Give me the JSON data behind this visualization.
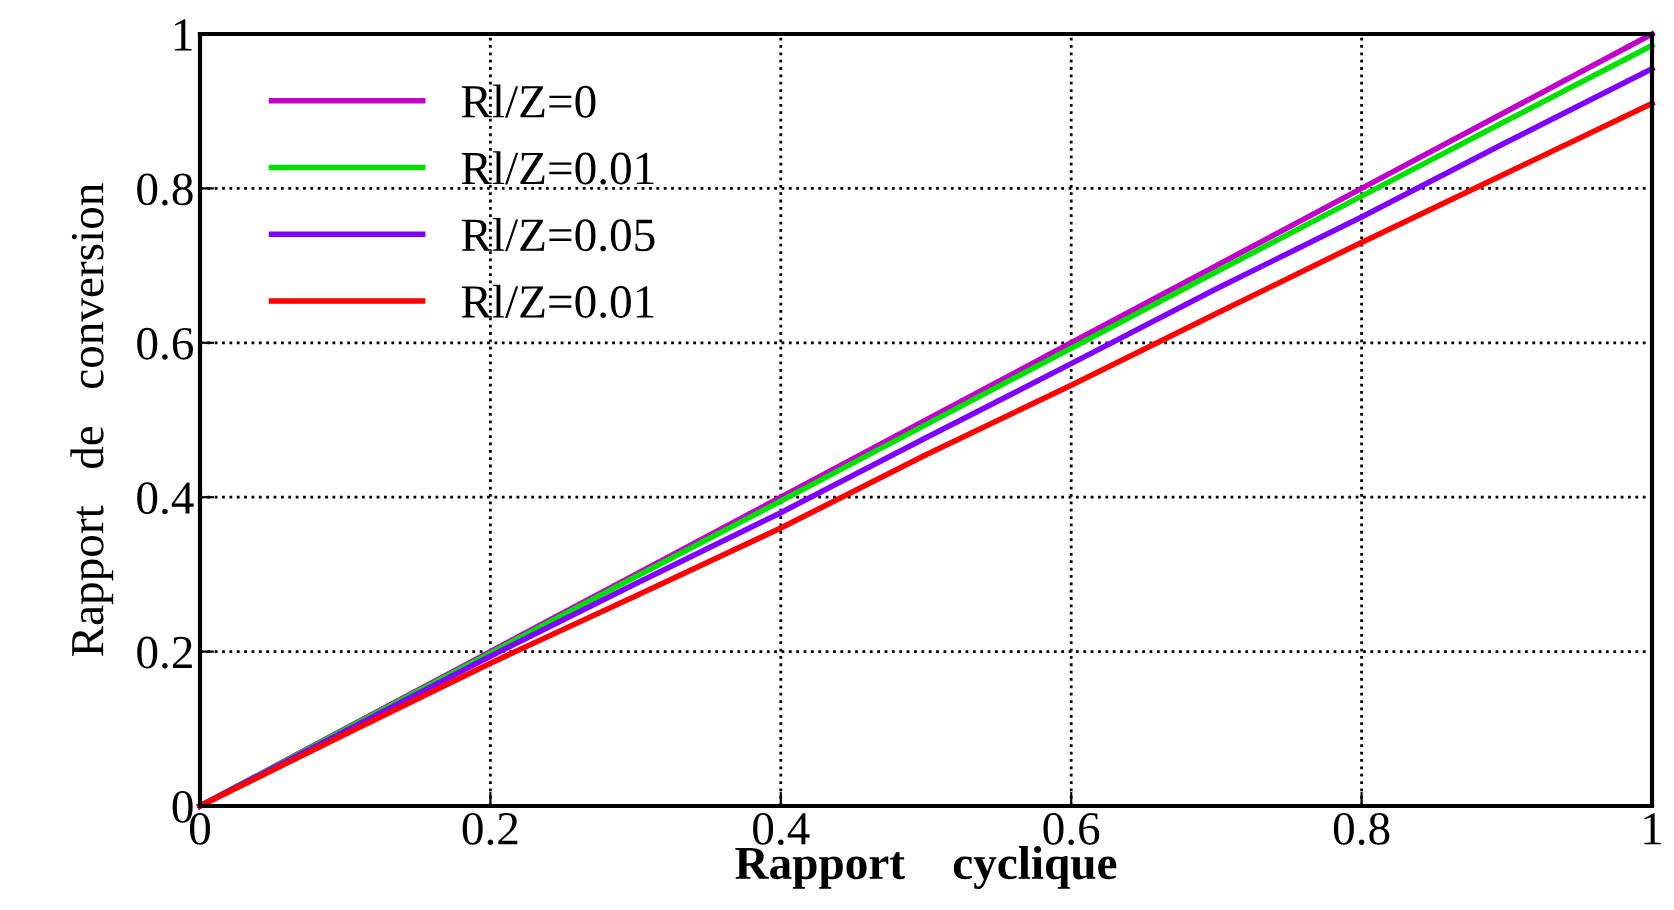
{
  "chart_data": {
    "type": "line",
    "xlabel": "Rapport    cyclique",
    "ylabel": "Rapport   de   conversion",
    "x": [
      0,
      0.1,
      0.2,
      0.3,
      0.4,
      0.5,
      0.6,
      0.7,
      0.8,
      0.9,
      1.0
    ],
    "series": [
      {
        "name": "Rl/Z=0",
        "color": "#c000c8",
        "values": [
          0,
          0.1,
          0.2,
          0.3,
          0.4,
          0.5,
          0.6,
          0.7,
          0.8,
          0.9,
          1.0
        ]
      },
      {
        "name": "Rl/Z=0.01",
        "color": "#00e000",
        "values": [
          0,
          0.099,
          0.198,
          0.297,
          0.395,
          0.494,
          0.593,
          0.692,
          0.79,
          0.888,
          0.985
        ]
      },
      {
        "name": "Rl/Z=0.05",
        "color": "#8000ff",
        "values": [
          0,
          0.097,
          0.194,
          0.288,
          0.38,
          0.477,
          0.573,
          0.67,
          0.763,
          0.86,
          0.955
        ]
      },
      {
        "name": "Rl/Z=0.01",
        "color": "#ff0000",
        "values": [
          0,
          0.093,
          0.185,
          0.272,
          0.36,
          0.455,
          0.545,
          0.638,
          0.73,
          0.82,
          0.91
        ]
      }
    ],
    "xlim": [
      0,
      1
    ],
    "ylim": [
      0,
      1
    ],
    "xticks": [
      0,
      0.2,
      0.4,
      0.6,
      0.8,
      1
    ],
    "yticks": [
      0,
      0.2,
      0.4,
      0.6,
      0.8,
      1
    ],
    "grid": true,
    "legend": "top left",
    "line_style": "solid",
    "marker": "none"
  }
}
